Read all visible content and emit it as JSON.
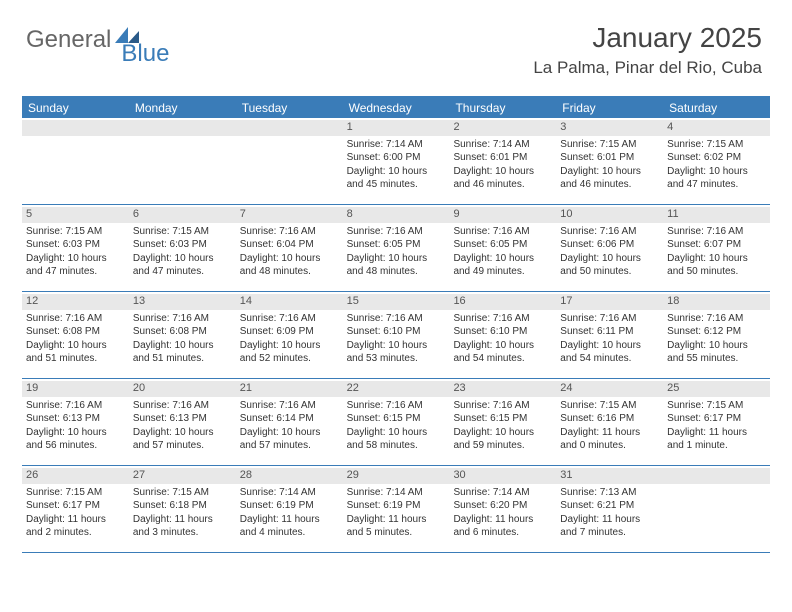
{
  "brand": {
    "part1": "General",
    "part2": "Blue"
  },
  "title": "January 2025",
  "location": "La Palma, Pinar del Rio, Cuba",
  "colors": {
    "accent": "#3a7cb8",
    "header_bg": "#3a7cb8",
    "header_text": "#ffffff",
    "daynum_bg": "#e8e8e8",
    "text": "#333333",
    "background": "#ffffff"
  },
  "day_headers": [
    "Sunday",
    "Monday",
    "Tuesday",
    "Wednesday",
    "Thursday",
    "Friday",
    "Saturday"
  ],
  "weeks": [
    [
      null,
      null,
      null,
      {
        "day": "1",
        "sunrise": "Sunrise: 7:14 AM",
        "sunset": "Sunset: 6:00 PM",
        "day1": "Daylight: 10 hours",
        "day2": "and 45 minutes."
      },
      {
        "day": "2",
        "sunrise": "Sunrise: 7:14 AM",
        "sunset": "Sunset: 6:01 PM",
        "day1": "Daylight: 10 hours",
        "day2": "and 46 minutes."
      },
      {
        "day": "3",
        "sunrise": "Sunrise: 7:15 AM",
        "sunset": "Sunset: 6:01 PM",
        "day1": "Daylight: 10 hours",
        "day2": "and 46 minutes."
      },
      {
        "day": "4",
        "sunrise": "Sunrise: 7:15 AM",
        "sunset": "Sunset: 6:02 PM",
        "day1": "Daylight: 10 hours",
        "day2": "and 47 minutes."
      }
    ],
    [
      {
        "day": "5",
        "sunrise": "Sunrise: 7:15 AM",
        "sunset": "Sunset: 6:03 PM",
        "day1": "Daylight: 10 hours",
        "day2": "and 47 minutes."
      },
      {
        "day": "6",
        "sunrise": "Sunrise: 7:15 AM",
        "sunset": "Sunset: 6:03 PM",
        "day1": "Daylight: 10 hours",
        "day2": "and 47 minutes."
      },
      {
        "day": "7",
        "sunrise": "Sunrise: 7:16 AM",
        "sunset": "Sunset: 6:04 PM",
        "day1": "Daylight: 10 hours",
        "day2": "and 48 minutes."
      },
      {
        "day": "8",
        "sunrise": "Sunrise: 7:16 AM",
        "sunset": "Sunset: 6:05 PM",
        "day1": "Daylight: 10 hours",
        "day2": "and 48 minutes."
      },
      {
        "day": "9",
        "sunrise": "Sunrise: 7:16 AM",
        "sunset": "Sunset: 6:05 PM",
        "day1": "Daylight: 10 hours",
        "day2": "and 49 minutes."
      },
      {
        "day": "10",
        "sunrise": "Sunrise: 7:16 AM",
        "sunset": "Sunset: 6:06 PM",
        "day1": "Daylight: 10 hours",
        "day2": "and 50 minutes."
      },
      {
        "day": "11",
        "sunrise": "Sunrise: 7:16 AM",
        "sunset": "Sunset: 6:07 PM",
        "day1": "Daylight: 10 hours",
        "day2": "and 50 minutes."
      }
    ],
    [
      {
        "day": "12",
        "sunrise": "Sunrise: 7:16 AM",
        "sunset": "Sunset: 6:08 PM",
        "day1": "Daylight: 10 hours",
        "day2": "and 51 minutes."
      },
      {
        "day": "13",
        "sunrise": "Sunrise: 7:16 AM",
        "sunset": "Sunset: 6:08 PM",
        "day1": "Daylight: 10 hours",
        "day2": "and 51 minutes."
      },
      {
        "day": "14",
        "sunrise": "Sunrise: 7:16 AM",
        "sunset": "Sunset: 6:09 PM",
        "day1": "Daylight: 10 hours",
        "day2": "and 52 minutes."
      },
      {
        "day": "15",
        "sunrise": "Sunrise: 7:16 AM",
        "sunset": "Sunset: 6:10 PM",
        "day1": "Daylight: 10 hours",
        "day2": "and 53 minutes."
      },
      {
        "day": "16",
        "sunrise": "Sunrise: 7:16 AM",
        "sunset": "Sunset: 6:10 PM",
        "day1": "Daylight: 10 hours",
        "day2": "and 54 minutes."
      },
      {
        "day": "17",
        "sunrise": "Sunrise: 7:16 AM",
        "sunset": "Sunset: 6:11 PM",
        "day1": "Daylight: 10 hours",
        "day2": "and 54 minutes."
      },
      {
        "day": "18",
        "sunrise": "Sunrise: 7:16 AM",
        "sunset": "Sunset: 6:12 PM",
        "day1": "Daylight: 10 hours",
        "day2": "and 55 minutes."
      }
    ],
    [
      {
        "day": "19",
        "sunrise": "Sunrise: 7:16 AM",
        "sunset": "Sunset: 6:13 PM",
        "day1": "Daylight: 10 hours",
        "day2": "and 56 minutes."
      },
      {
        "day": "20",
        "sunrise": "Sunrise: 7:16 AM",
        "sunset": "Sunset: 6:13 PM",
        "day1": "Daylight: 10 hours",
        "day2": "and 57 minutes."
      },
      {
        "day": "21",
        "sunrise": "Sunrise: 7:16 AM",
        "sunset": "Sunset: 6:14 PM",
        "day1": "Daylight: 10 hours",
        "day2": "and 57 minutes."
      },
      {
        "day": "22",
        "sunrise": "Sunrise: 7:16 AM",
        "sunset": "Sunset: 6:15 PM",
        "day1": "Daylight: 10 hours",
        "day2": "and 58 minutes."
      },
      {
        "day": "23",
        "sunrise": "Sunrise: 7:16 AM",
        "sunset": "Sunset: 6:15 PM",
        "day1": "Daylight: 10 hours",
        "day2": "and 59 minutes."
      },
      {
        "day": "24",
        "sunrise": "Sunrise: 7:15 AM",
        "sunset": "Sunset: 6:16 PM",
        "day1": "Daylight: 11 hours",
        "day2": "and 0 minutes."
      },
      {
        "day": "25",
        "sunrise": "Sunrise: 7:15 AM",
        "sunset": "Sunset: 6:17 PM",
        "day1": "Daylight: 11 hours",
        "day2": "and 1 minute."
      }
    ],
    [
      {
        "day": "26",
        "sunrise": "Sunrise: 7:15 AM",
        "sunset": "Sunset: 6:17 PM",
        "day1": "Daylight: 11 hours",
        "day2": "and 2 minutes."
      },
      {
        "day": "27",
        "sunrise": "Sunrise: 7:15 AM",
        "sunset": "Sunset: 6:18 PM",
        "day1": "Daylight: 11 hours",
        "day2": "and 3 minutes."
      },
      {
        "day": "28",
        "sunrise": "Sunrise: 7:14 AM",
        "sunset": "Sunset: 6:19 PM",
        "day1": "Daylight: 11 hours",
        "day2": "and 4 minutes."
      },
      {
        "day": "29",
        "sunrise": "Sunrise: 7:14 AM",
        "sunset": "Sunset: 6:19 PM",
        "day1": "Daylight: 11 hours",
        "day2": "and 5 minutes."
      },
      {
        "day": "30",
        "sunrise": "Sunrise: 7:14 AM",
        "sunset": "Sunset: 6:20 PM",
        "day1": "Daylight: 11 hours",
        "day2": "and 6 minutes."
      },
      {
        "day": "31",
        "sunrise": "Sunrise: 7:13 AM",
        "sunset": "Sunset: 6:21 PM",
        "day1": "Daylight: 11 hours",
        "day2": "and 7 minutes."
      },
      null
    ]
  ]
}
